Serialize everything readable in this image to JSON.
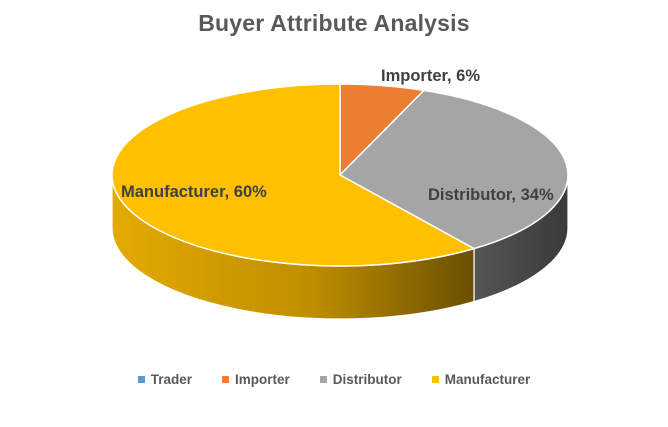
{
  "chart_data": {
    "type": "pie",
    "title": "Buyer Attribute Analysis",
    "categories": [
      "Trader",
      "Importer",
      "Distributor",
      "Manufacturer"
    ],
    "values": [
      0,
      6,
      34,
      60
    ],
    "data_labels": [
      "",
      "Importer, 6%",
      "Distributor, 34%",
      "Manufacturer, 60%"
    ],
    "colors": [
      "#5B9BD5",
      "#ED7D31",
      "#A5A5A5",
      "#FFC000"
    ],
    "legend_position": "bottom",
    "style": "3d-pie"
  }
}
